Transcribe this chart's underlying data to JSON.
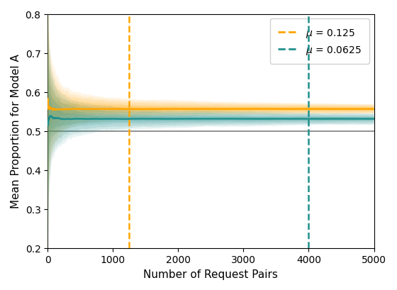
{
  "title": "",
  "xlabel": "Number of Request Pairs",
  "ylabel": "Mean Proportion for Model A",
  "xlim": [
    0,
    5000
  ],
  "ylim": [
    0.2,
    0.8
  ],
  "yticks": [
    0.2,
    0.3,
    0.4,
    0.5,
    0.6,
    0.7,
    0.8
  ],
  "xticks": [
    0,
    1000,
    2000,
    3000,
    4000,
    5000
  ],
  "hline_y": 0.5,
  "hline_color": "#7f7f7f",
  "series": [
    {
      "mu": 0.125,
      "true_mean": 0.556,
      "color": "#FFA500",
      "fill_color": "#FFA500",
      "vline_x": 1250,
      "vline_label": "μ = 0.125"
    },
    {
      "mu": 0.0625,
      "true_mean": 0.531,
      "color": "#20908d",
      "fill_color": "#20908d",
      "vline_x": 4000,
      "vline_label": "μ = 0.0625"
    }
  ],
  "n_points": 5000,
  "n_sim": 500,
  "figsize": [
    5.6,
    4.1
  ],
  "dpi": 100
}
